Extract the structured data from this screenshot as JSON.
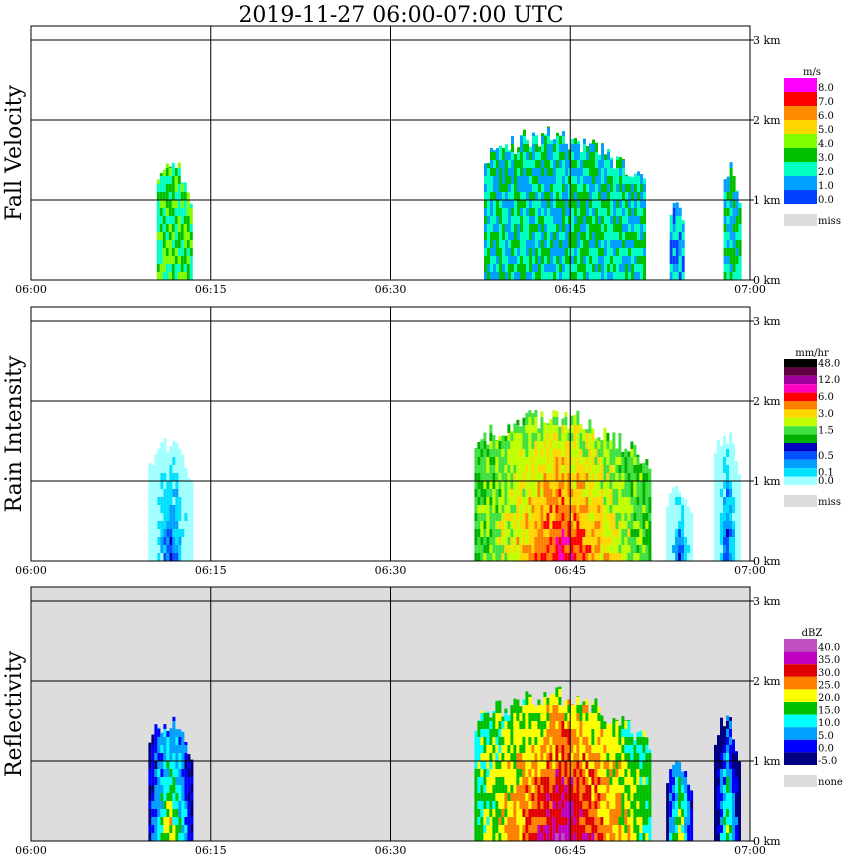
{
  "title": "2019-11-27   06:00-07:00 UTC",
  "time_labels": [
    "06:00",
    "06:15",
    "06:30",
    "06:45",
    "07:00"
  ],
  "height_labels": [
    "0 km",
    "1 km",
    "2 km",
    "3 km"
  ],
  "panels": [
    {
      "id": "fall-velocity",
      "ylabel": "Fall Velocity",
      "unit": "m/s",
      "background": "#ffffff",
      "legend": [
        {
          "label": "8.0",
          "color": "#ff00ff"
        },
        {
          "label": "7.0",
          "color": "#ff0000"
        },
        {
          "label": "6.0",
          "color": "#ff8c00"
        },
        {
          "label": "5.0",
          "color": "#ffd700"
        },
        {
          "label": "4.0",
          "color": "#80ff00"
        },
        {
          "label": "3.0",
          "color": "#00c000"
        },
        {
          "label": "2.0",
          "color": "#00ffc0"
        },
        {
          "label": "1.0",
          "color": "#00a0ff"
        },
        {
          "label": "0.0",
          "color": "#0040ff"
        }
      ],
      "miss_label": "miss",
      "miss_color": "#dddddd"
    },
    {
      "id": "rain-intensity",
      "ylabel": "Rain Intensity",
      "unit": "mm/hr",
      "background": "#ffffff",
      "legend": [
        {
          "label": "48.0",
          "color": "#000000"
        },
        {
          "label": "",
          "color": "#600040"
        },
        {
          "label": "12.0",
          "color": "#a000a0"
        },
        {
          "label": "",
          "color": "#ff00c0"
        },
        {
          "label": "6.0",
          "color": "#ff0000"
        },
        {
          "label": "",
          "color": "#ff8000"
        },
        {
          "label": "3.0",
          "color": "#ffd700"
        },
        {
          "label": "",
          "color": "#c0ff00"
        },
        {
          "label": "1.5",
          "color": "#40e040"
        },
        {
          "label": "",
          "color": "#00b000"
        },
        {
          "label": "",
          "color": "#0000c0"
        },
        {
          "label": "0.5",
          "color": "#0050ff"
        },
        {
          "label": "",
          "color": "#00a0ff"
        },
        {
          "label": "0.1",
          "color": "#00e0ff"
        },
        {
          "label": "0.0",
          "color": "#a0ffff"
        }
      ],
      "miss_label": "miss",
      "miss_color": "#dddddd"
    },
    {
      "id": "reflectivity",
      "ylabel": "Reflectivity",
      "unit": "dBZ",
      "background": "#dddddd",
      "legend": [
        {
          "label": "40.0",
          "color": "#c050c0"
        },
        {
          "label": "35.0",
          "color": "#c000c0"
        },
        {
          "label": "30.0",
          "color": "#e00000"
        },
        {
          "label": "25.0",
          "color": "#ff8000"
        },
        {
          "label": "20.0",
          "color": "#ffff00"
        },
        {
          "label": "15.0",
          "color": "#00c000"
        },
        {
          "label": "10.0",
          "color": "#00ffff"
        },
        {
          "label": "5.0",
          "color": "#00a0ff"
        },
        {
          "label": "0.0",
          "color": "#0000ff"
        },
        {
          "label": "-5.0",
          "color": "#000080"
        }
      ],
      "miss_label": "none",
      "miss_color": "#dddddd"
    }
  ],
  "chart_data": [
    {
      "type": "heatmap",
      "title": "2019-11-27   06:00-07:00 UTC",
      "ylabel": "Fall Velocity",
      "unit": "m/s",
      "x_range_minutes": [
        0,
        60
      ],
      "y_range_km": [
        0,
        3.1
      ],
      "echoes": [
        {
          "start_min": 10.5,
          "end_min": 13.7,
          "top_km": 1.6,
          "dominant": "3.0"
        },
        {
          "start_min": 37.8,
          "end_min": 51.5,
          "top_km": 1.95,
          "dominant": "2.0"
        },
        {
          "start_min": 53.3,
          "end_min": 54.8,
          "top_km": 1.15,
          "dominant": "1.0"
        },
        {
          "start_min": 57.8,
          "end_min": 59.4,
          "top_km": 1.55,
          "dominant": "2.0"
        }
      ]
    },
    {
      "type": "heatmap",
      "title": "2019-11-27   06:00-07:00 UTC",
      "ylabel": "Rain Intensity",
      "unit": "mm/hr",
      "x_range_minutes": [
        0,
        60
      ],
      "y_range_km": [
        0,
        3.1
      ],
      "echoes": [
        {
          "start_min": 9.8,
          "end_min": 13.8,
          "top_km": 1.6,
          "dominant": "0.1"
        },
        {
          "start_min": 37.0,
          "end_min": 51.8,
          "top_km": 1.95,
          "dominant": "3.0"
        },
        {
          "start_min": 53.0,
          "end_min": 55.3,
          "top_km": 0.95,
          "dominant": "0.1"
        },
        {
          "start_min": 57.0,
          "end_min": 59.5,
          "top_km": 1.7,
          "dominant": "0.1"
        }
      ]
    },
    {
      "type": "heatmap",
      "title": "2019-11-27   06:00-07:00 UTC",
      "ylabel": "Reflectivity",
      "unit": "dBZ",
      "x_range_minutes": [
        0,
        60
      ],
      "y_range_km": [
        0,
        3.1
      ],
      "echoes": [
        {
          "start_min": 9.8,
          "end_min": 13.8,
          "top_km": 1.6,
          "dominant": "10.0"
        },
        {
          "start_min": 37.0,
          "end_min": 51.8,
          "top_km": 1.95,
          "dominant": "25.0"
        },
        {
          "start_min": 53.0,
          "end_min": 55.3,
          "top_km": 1.0,
          "dominant": "10.0"
        },
        {
          "start_min": 57.0,
          "end_min": 59.5,
          "top_km": 1.65,
          "dominant": "5.0"
        }
      ]
    }
  ]
}
